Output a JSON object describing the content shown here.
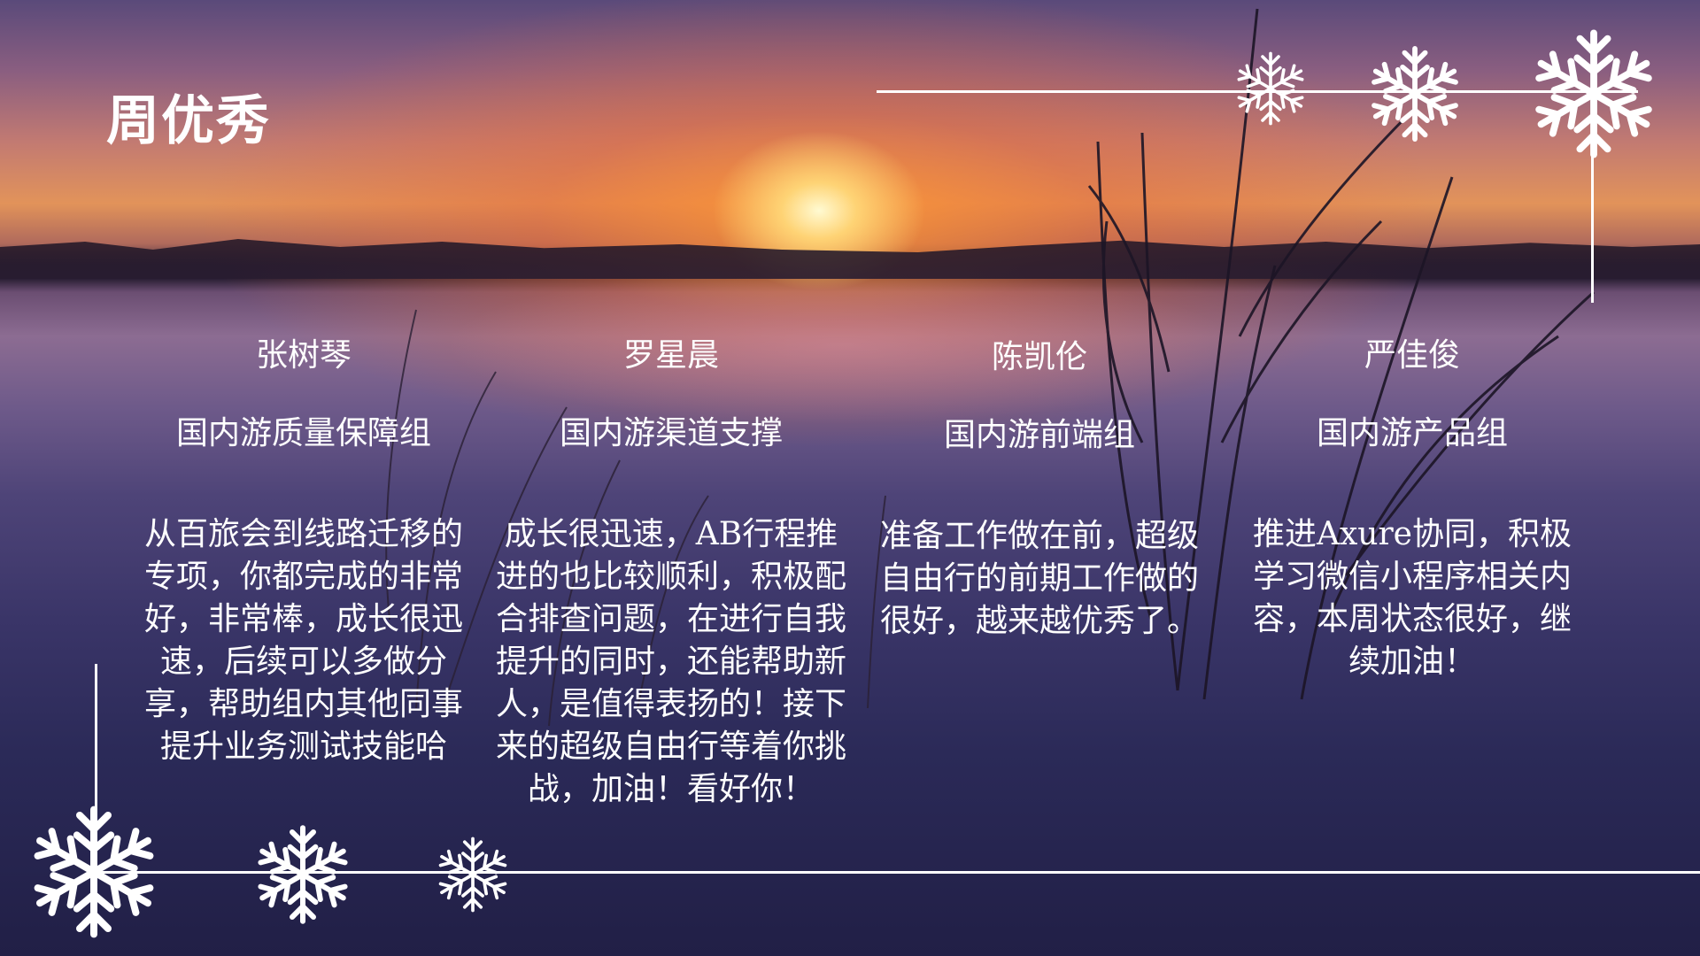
{
  "title": "周优秀",
  "awardees": [
    {
      "name": "张树琴",
      "team": "国内游质量保障组",
      "comment": "从百旅会到线路迁移的专项，你都完成的非常好，非常棒，成长很迅速，后续可以多做分享，帮助组内其他同事提升业务测试技能哈"
    },
    {
      "name": "罗星晨",
      "team": "国内游渠道支撑",
      "comment": "成长很迅速，AB行程推进的也比较顺利，积极配合排查问题，在进行自我提升的同时，还能帮助新人，是值得表扬的！接下来的超级自由行等着你挑战，加油！看好你！"
    },
    {
      "name": "陈凯伦",
      "team": "国内游前端组",
      "comment": "准备工作做在前，超级自由行的前期工作做的很好，越来越优秀了。"
    },
    {
      "name": "严佳俊",
      "team": "国内游产品组",
      "comment": "推进Axure协同，积极学习微信小程序相关内容，本周状态很好，继续加油！"
    }
  ],
  "decorations": {
    "line_color": "#ffffff",
    "snowflake_icon": "snowflake-icon"
  }
}
